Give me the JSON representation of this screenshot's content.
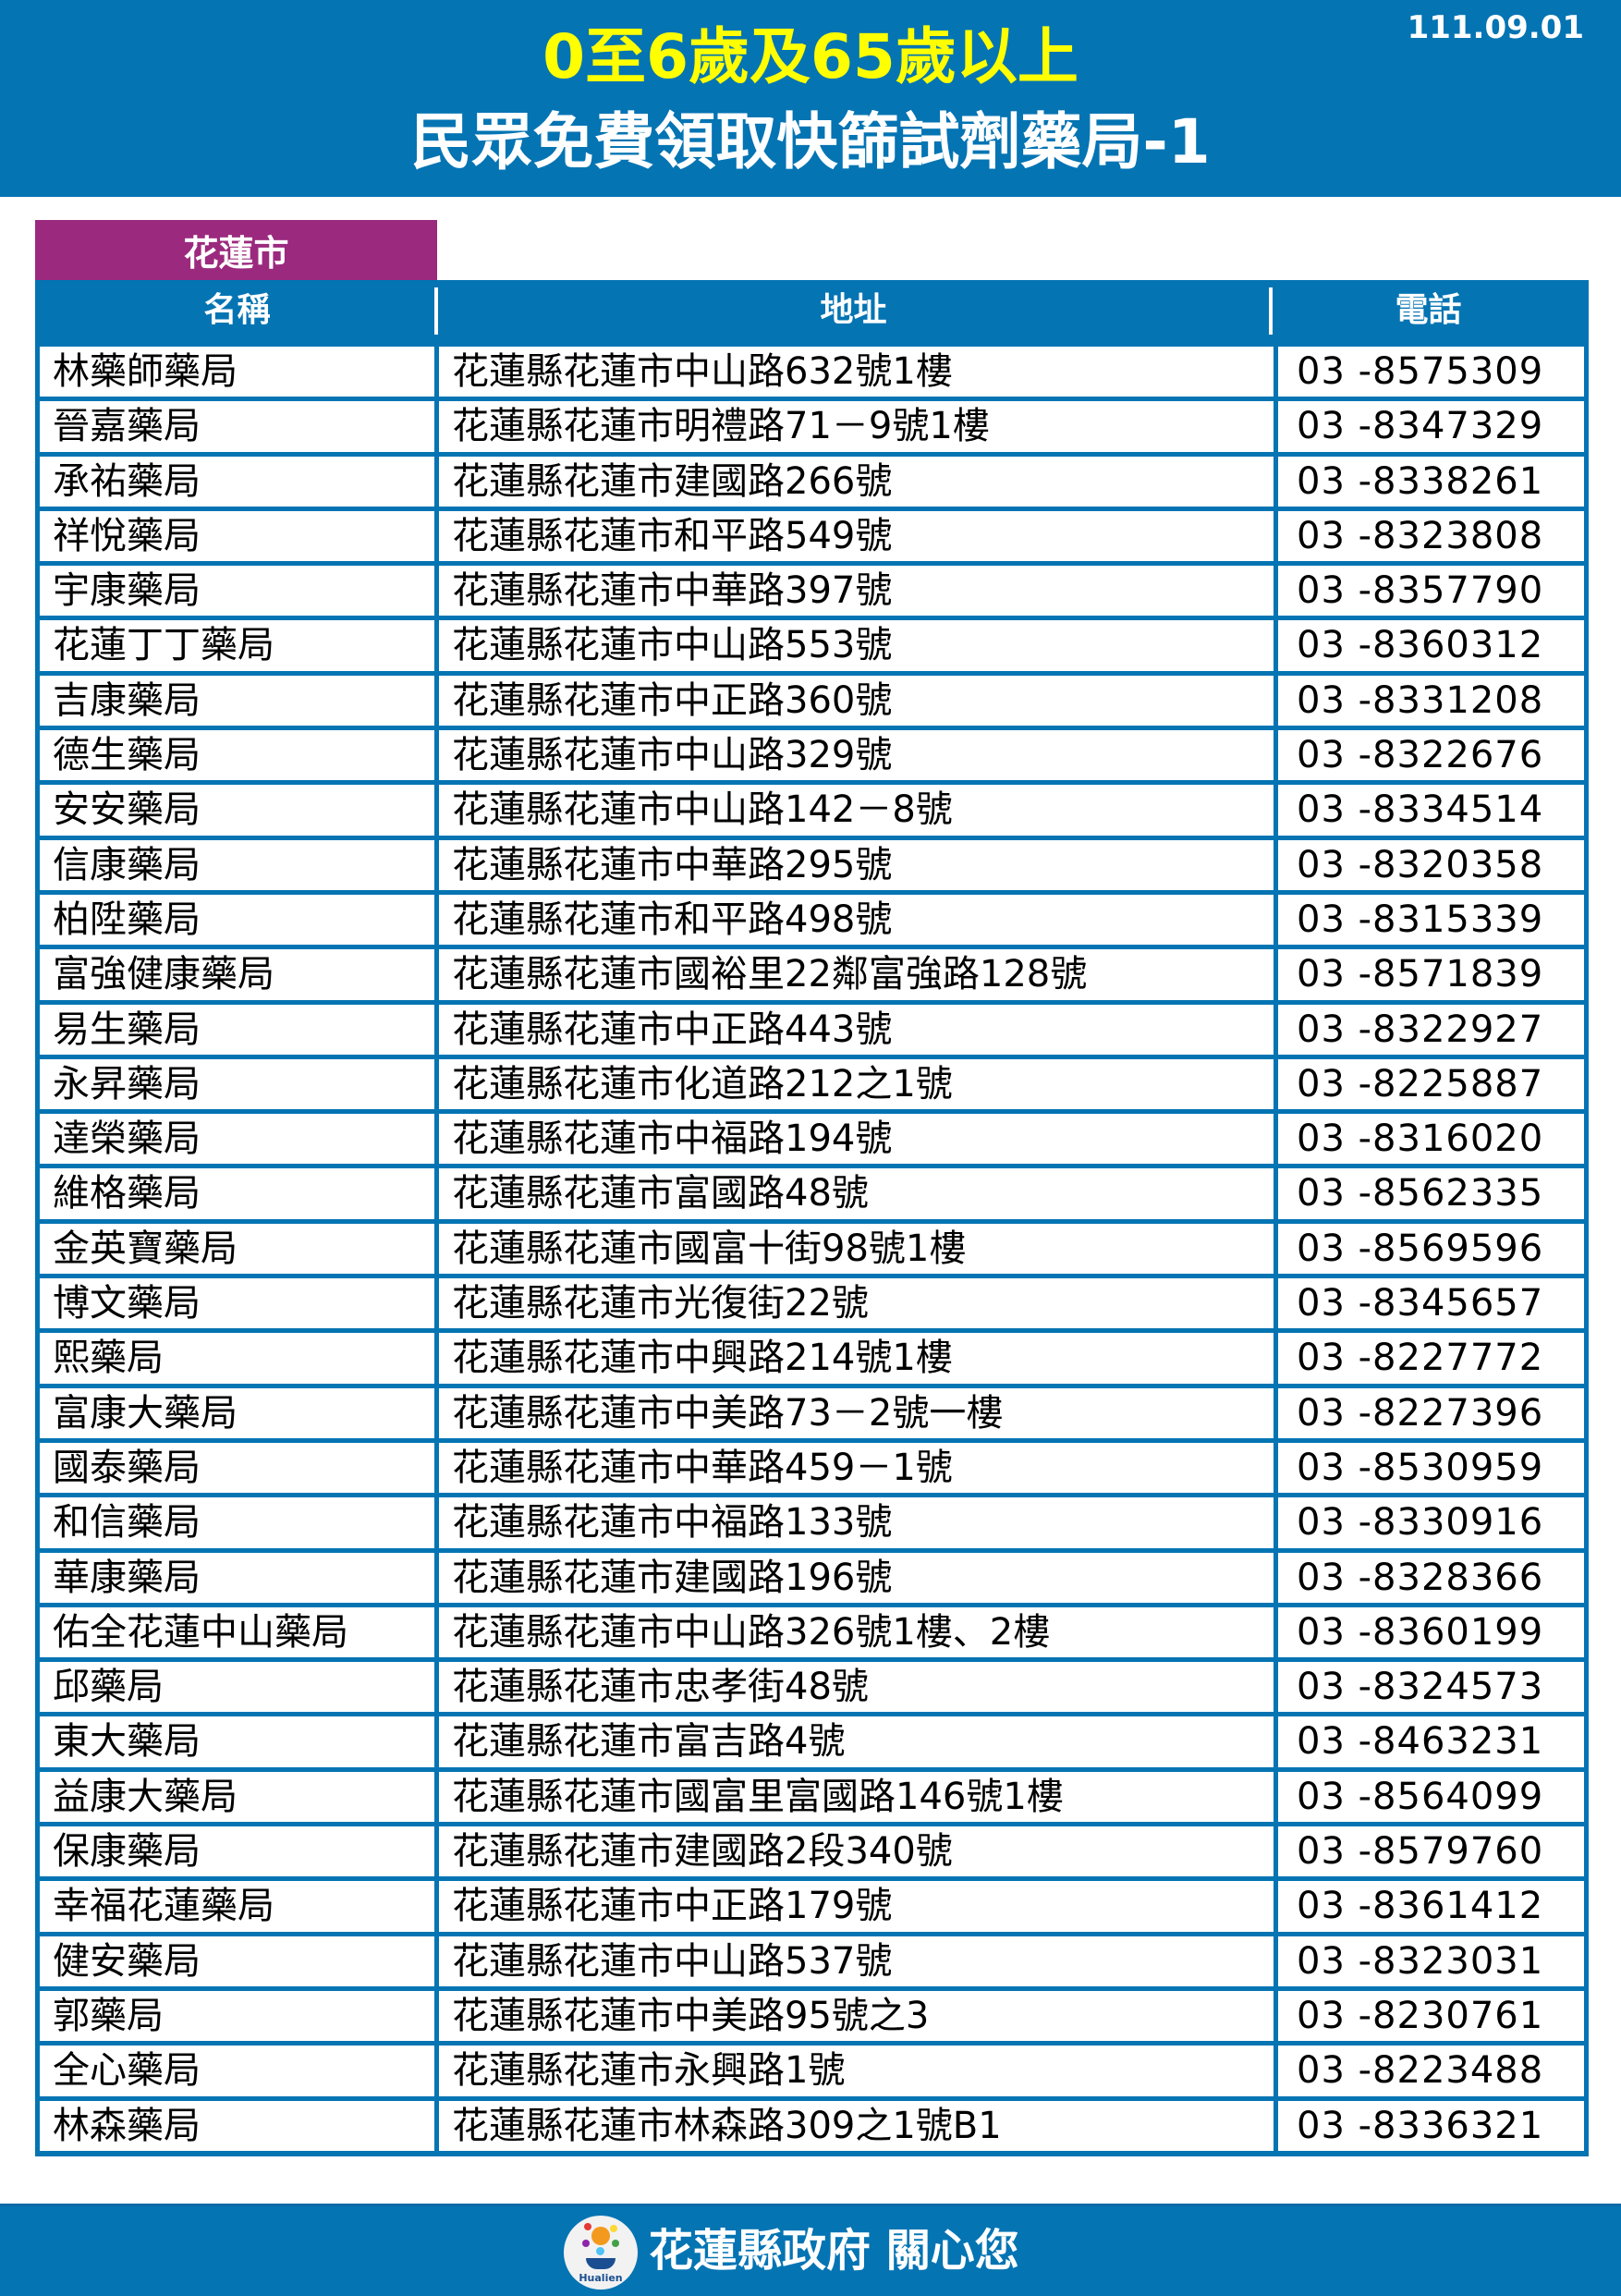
{
  "header": {
    "date": "111.09.01",
    "title_line1": "0至6歲及65歲以上",
    "title_line2": "民眾免費領取快篩試劑藥局-1",
    "title_line1_color": "#ffff00",
    "background_color": "#0474b3"
  },
  "section_tab": {
    "label": "花蓮市",
    "color": "#9b2a7e"
  },
  "table": {
    "columns": [
      "名稱",
      "地址",
      "電話"
    ],
    "rows": [
      [
        "林藥師藥局",
        "花蓮縣花蓮市中山路632號1樓",
        "03 -8575309"
      ],
      [
        "晉嘉藥局",
        "花蓮縣花蓮市明禮路71－9號1樓",
        "03 -8347329"
      ],
      [
        "承祐藥局",
        "花蓮縣花蓮市建國路266號",
        "03 -8338261"
      ],
      [
        "祥悅藥局",
        "花蓮縣花蓮市和平路549號",
        "03 -8323808"
      ],
      [
        "宇康藥局",
        "花蓮縣花蓮市中華路397號",
        "03 -8357790"
      ],
      [
        "花蓮丁丁藥局",
        "花蓮縣花蓮市中山路553號",
        "03 -8360312"
      ],
      [
        "吉康藥局",
        "花蓮縣花蓮市中正路360號",
        "03 -8331208"
      ],
      [
        "德生藥局",
        "花蓮縣花蓮市中山路329號",
        "03 -8322676"
      ],
      [
        "安安藥局",
        "花蓮縣花蓮市中山路142－8號",
        "03 -8334514"
      ],
      [
        "信康藥局",
        "花蓮縣花蓮市中華路295號",
        "03 -8320358"
      ],
      [
        "柏陞藥局",
        "花蓮縣花蓮市和平路498號",
        "03 -8315339"
      ],
      [
        "富強健康藥局",
        "花蓮縣花蓮市國裕里22鄰富強路128號",
        "03 -8571839"
      ],
      [
        "易生藥局",
        "花蓮縣花蓮市中正路443號",
        "03 -8322927"
      ],
      [
        "永昇藥局",
        "花蓮縣花蓮市化道路212之1號",
        "03 -8225887"
      ],
      [
        "達榮藥局",
        "花蓮縣花蓮市中福路194號",
        "03 -8316020"
      ],
      [
        "維格藥局",
        "花蓮縣花蓮市富國路48號",
        "03 -8562335"
      ],
      [
        "金英寶藥局",
        "花蓮縣花蓮市國富十街98號1樓",
        "03 -8569596"
      ],
      [
        "博文藥局",
        "花蓮縣花蓮市光復街22號",
        "03 -8345657"
      ],
      [
        "熙藥局",
        "花蓮縣花蓮市中興路214號1樓",
        "03 -8227772"
      ],
      [
        "富康大藥局",
        "花蓮縣花蓮市中美路73－2號一樓",
        "03 -8227396"
      ],
      [
        "國泰藥局",
        "花蓮縣花蓮市中華路459－1號",
        "03 -8530959"
      ],
      [
        "和信藥局",
        "花蓮縣花蓮市中福路133號",
        "03 -8330916"
      ],
      [
        "華康藥局",
        "花蓮縣花蓮市建國路196號",
        "03 -8328366"
      ],
      [
        "佑全花蓮中山藥局",
        "花蓮縣花蓮市中山路326號1樓、2樓",
        "03 -8360199"
      ],
      [
        "邱藥局",
        "花蓮縣花蓮市忠孝街48號",
        "03 -8324573"
      ],
      [
        "東大藥局",
        "花蓮縣花蓮市富吉路4號",
        "03 -8463231"
      ],
      [
        "益康大藥局",
        "花蓮縣花蓮市國富里富國路146號1樓",
        "03 -8564099"
      ],
      [
        "保康藥局",
        "花蓮縣花蓮市建國路2段340號",
        "03 -8579760"
      ],
      [
        "幸福花蓮藥局",
        "花蓮縣花蓮市中正路179號",
        "03 -8361412"
      ],
      [
        "健安藥局",
        "花蓮縣花蓮市中山路537號",
        "03 -8323031"
      ],
      [
        "郭藥局",
        "花蓮縣花蓮市中美路95號之3",
        "03 -8230761"
      ],
      [
        "全心藥局",
        "花蓮縣花蓮市永興路1號",
        "03 -8223488"
      ],
      [
        "林森藥局",
        "花蓮縣花蓮市林森路309之1號B1",
        "03 -8336321"
      ]
    ]
  },
  "footer": {
    "logo_text": "Hualien",
    "slogan": "花蓮縣政府 關心您"
  }
}
